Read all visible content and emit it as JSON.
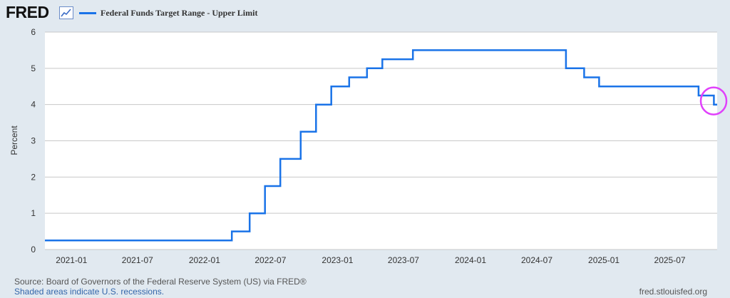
{
  "header": {
    "logo_text": "FRED",
    "legend_label": "Federal Funds Target Range - Upper Limit"
  },
  "footer": {
    "source": "Source: Board of Governors of the Federal Reserve System (US) via FRED®",
    "recession_note": "Shaded areas indicate U.S. recessions.",
    "site": "fred.stlouisfed.org"
  },
  "colors": {
    "series": "#1a73e8",
    "highlight": "#e040fb",
    "background": "#e1e9f0",
    "plot_background": "#ffffff",
    "grid": "#c8c8c8"
  },
  "chart_data": {
    "type": "line",
    "step": true,
    "ylabel": "Percent",
    "xlabel": "",
    "ylim": [
      0,
      6
    ],
    "yticks": [
      0,
      1,
      2,
      3,
      4,
      5,
      6
    ],
    "xlim": [
      "2020-10-20",
      "2025-11-08"
    ],
    "xticks": [
      {
        "date": "2021-01-01",
        "label": "2021-01"
      },
      {
        "date": "2021-07-01",
        "label": "2021-07"
      },
      {
        "date": "2022-01-01",
        "label": "2022-01"
      },
      {
        "date": "2022-07-01",
        "label": "2022-07"
      },
      {
        "date": "2023-01-01",
        "label": "2023-01"
      },
      {
        "date": "2023-07-01",
        "label": "2023-07"
      },
      {
        "date": "2024-01-01",
        "label": "2024-01"
      },
      {
        "date": "2024-07-01",
        "label": "2024-07"
      },
      {
        "date": "2025-01-01",
        "label": "2025-01"
      },
      {
        "date": "2025-07-01",
        "label": "2025-07"
      }
    ],
    "grid": "horizontal",
    "series": [
      {
        "name": "Federal Funds Target Range - Upper Limit",
        "points": [
          {
            "x": "2020-10-20",
            "y": 0.25
          },
          {
            "x": "2022-03-17",
            "y": 0.5
          },
          {
            "x": "2022-05-05",
            "y": 1.0
          },
          {
            "x": "2022-06-16",
            "y": 1.75
          },
          {
            "x": "2022-07-28",
            "y": 2.5
          },
          {
            "x": "2022-09-22",
            "y": 3.25
          },
          {
            "x": "2022-11-03",
            "y": 4.0
          },
          {
            "x": "2022-12-15",
            "y": 4.5
          },
          {
            "x": "2023-02-02",
            "y": 4.75
          },
          {
            "x": "2023-03-23",
            "y": 5.0
          },
          {
            "x": "2023-05-04",
            "y": 5.25
          },
          {
            "x": "2023-07-27",
            "y": 5.5
          },
          {
            "x": "2024-09-19",
            "y": 5.0
          },
          {
            "x": "2024-11-08",
            "y": 4.75
          },
          {
            "x": "2024-12-19",
            "y": 4.5
          },
          {
            "x": "2025-09-18",
            "y": 4.25
          },
          {
            "x": "2025-10-30",
            "y": 4.0
          }
        ],
        "end": "2025-11-08"
      }
    ],
    "annotations": [
      {
        "type": "ellipse",
        "color": "#e040fb",
        "x": "2025-11-08",
        "y": 4.1
      }
    ]
  }
}
